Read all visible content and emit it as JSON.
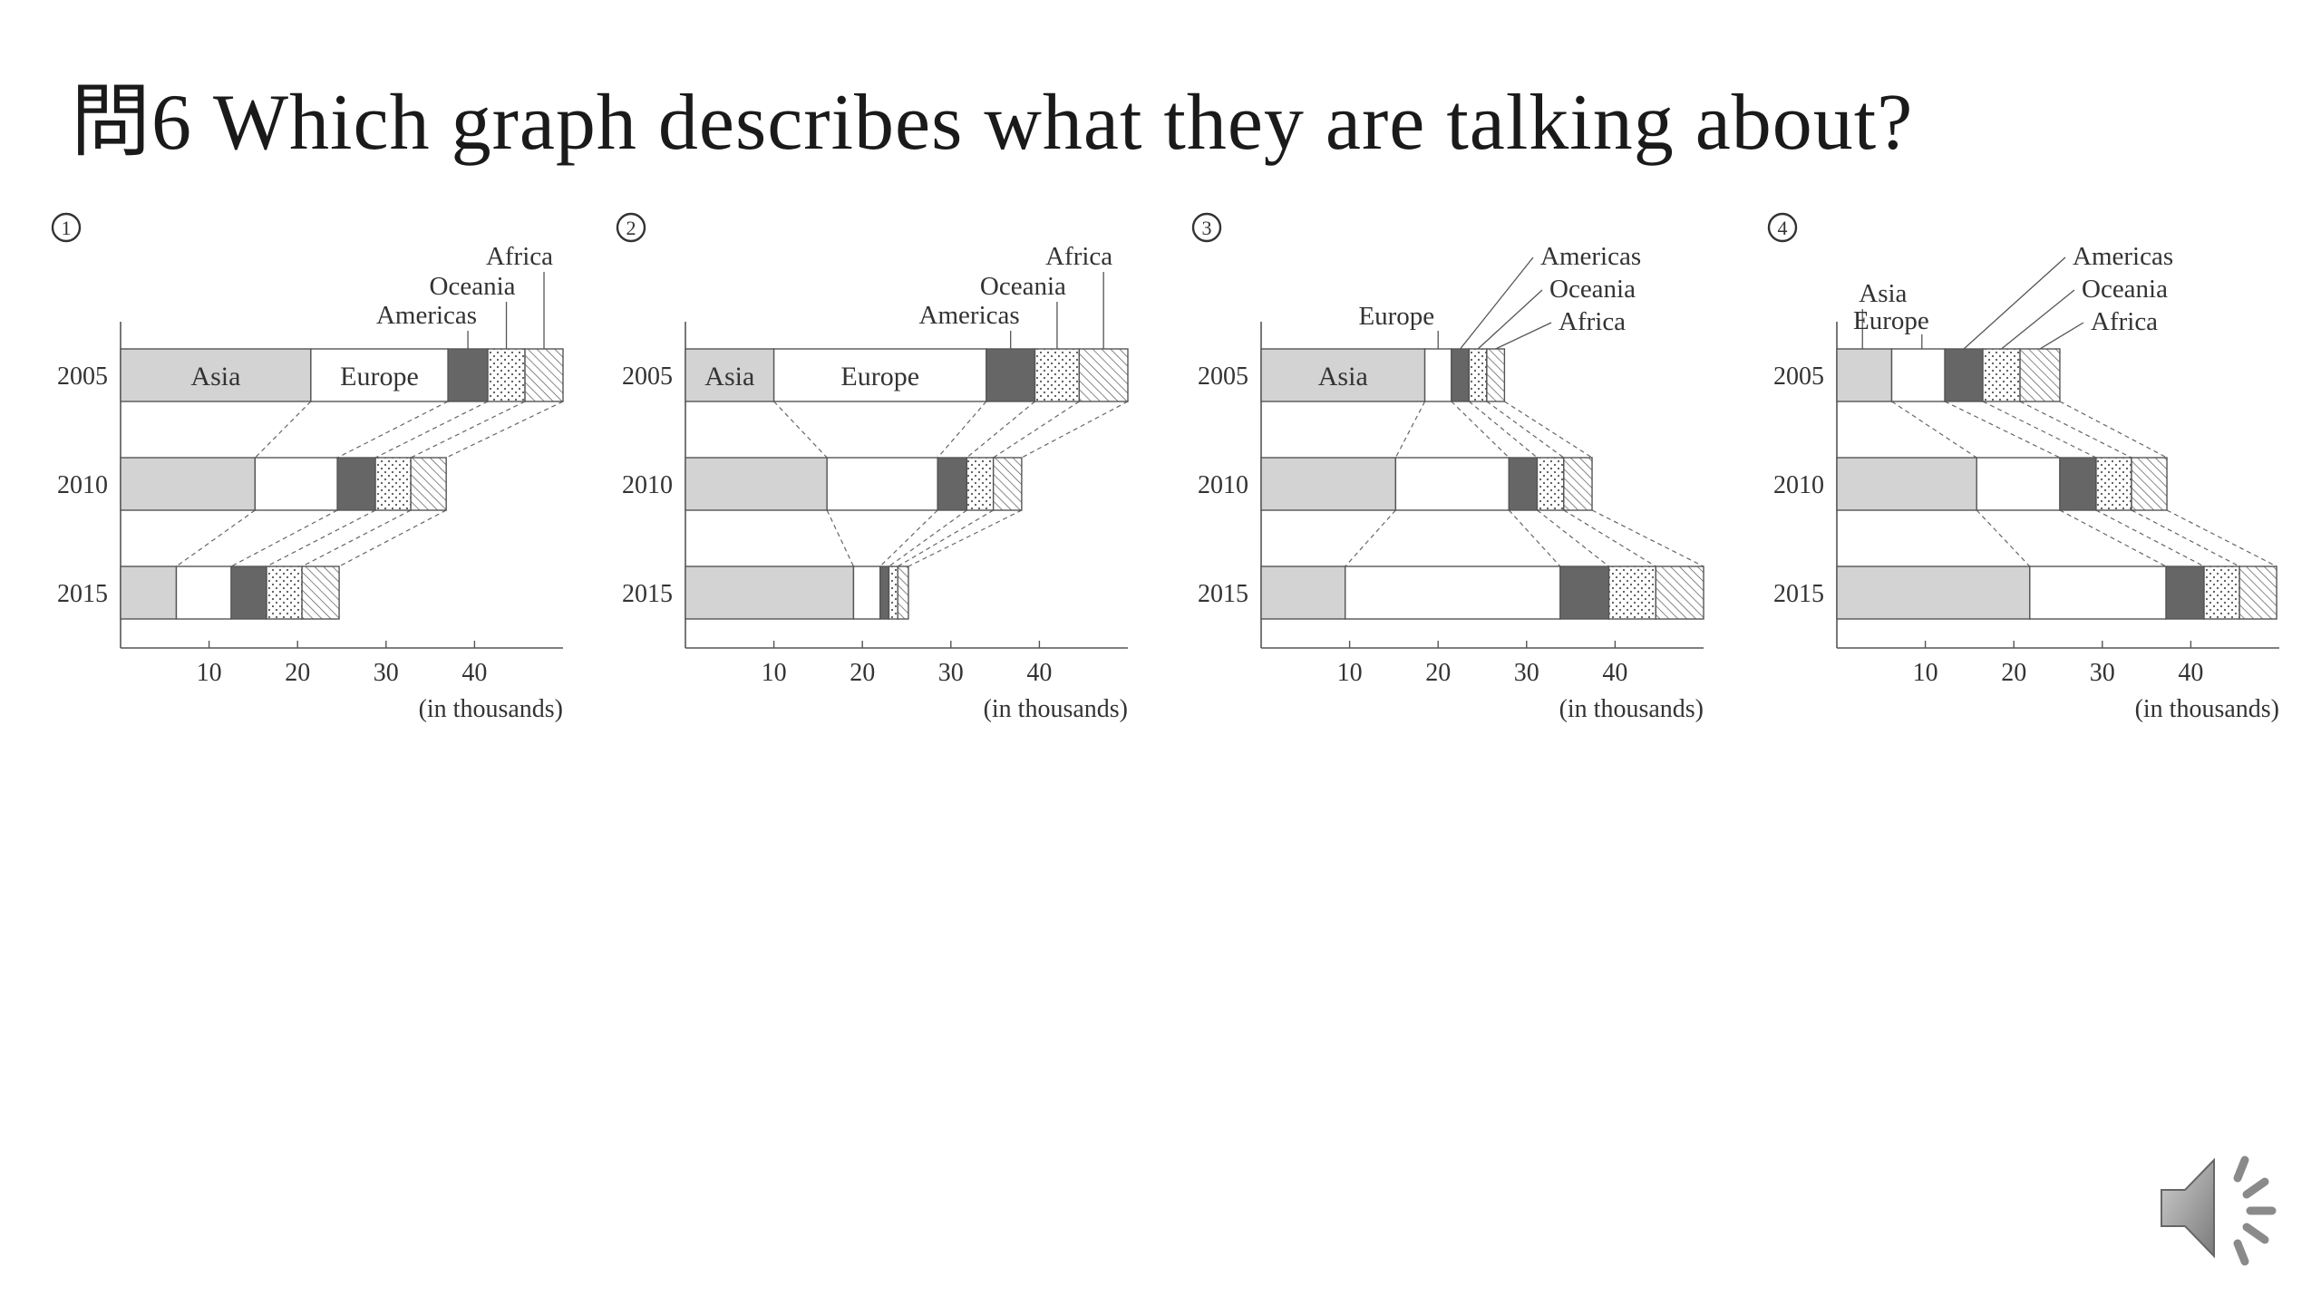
{
  "slide": {
    "title": "問6 Which graph describes what they are talking about?"
  },
  "colors": {
    "Asia": "#d3d3d3",
    "Europe": "#ffffff",
    "Americas": "#666666",
    "Oceania": "dotted",
    "Africa": "hatched",
    "stroke": "#555555"
  },
  "icons": {
    "speaker": "speaker-icon"
  },
  "chart_data": [
    {
      "type": "bar",
      "stacked": true,
      "orientation": "horizontal",
      "choice": "①",
      "categories": [
        "2005",
        "2010",
        "2015"
      ],
      "series": [
        {
          "name": "Asia",
          "values": [
            21.5,
            15.2,
            6.3
          ]
        },
        {
          "name": "Europe",
          "values": [
            15.5,
            9.3,
            6.2
          ]
        },
        {
          "name": "Americas",
          "values": [
            4.5,
            4.3,
            4.0
          ]
        },
        {
          "name": "Oceania",
          "values": [
            4.2,
            4.0,
            4.0
          ]
        },
        {
          "name": "Africa",
          "values": [
            4.3,
            4.0,
            4.2
          ]
        }
      ],
      "xticks": [
        "10",
        "20",
        "30",
        "40"
      ],
      "xlabel": "(in thousands)",
      "xlim": [
        0,
        50
      ],
      "inside_labels": [
        "Asia",
        "Europe"
      ],
      "callouts": [
        "Americas",
        "Oceania",
        "Africa"
      ]
    },
    {
      "type": "bar",
      "stacked": true,
      "orientation": "horizontal",
      "choice": "②",
      "categories": [
        "2005",
        "2010",
        "2015"
      ],
      "series": [
        {
          "name": "Asia",
          "values": [
            10.0,
            16.0,
            19.0
          ]
        },
        {
          "name": "Europe",
          "values": [
            24.0,
            12.5,
            3.0
          ]
        },
        {
          "name": "Americas",
          "values": [
            5.5,
            3.3,
            1.0
          ]
        },
        {
          "name": "Oceania",
          "values": [
            5.0,
            3.0,
            1.0
          ]
        },
        {
          "name": "Africa",
          "values": [
            5.5,
            3.2,
            1.2
          ]
        }
      ],
      "xticks": [
        "10",
        "20",
        "30",
        "40"
      ],
      "xlabel": "(in thousands)",
      "xlim": [
        0,
        50
      ],
      "inside_labels": [
        "Asia",
        "Europe"
      ],
      "callouts": [
        "Americas",
        "Oceania",
        "Africa"
      ]
    },
    {
      "type": "bar",
      "stacked": true,
      "orientation": "horizontal",
      "choice": "③",
      "categories": [
        "2005",
        "2010",
        "2015"
      ],
      "series": [
        {
          "name": "Asia",
          "values": [
            18.5,
            15.2,
            9.5
          ]
        },
        {
          "name": "Europe",
          "values": [
            3.0,
            12.8,
            24.3
          ]
        },
        {
          "name": "Americas",
          "values": [
            2.0,
            3.2,
            5.5
          ]
        },
        {
          "name": "Oceania",
          "values": [
            2.0,
            3.0,
            5.3
          ]
        },
        {
          "name": "Africa",
          "values": [
            2.0,
            3.2,
            5.4
          ]
        }
      ],
      "xticks": [
        "10",
        "20",
        "30",
        "40"
      ],
      "xlabel": "(in thousands)",
      "xlim": [
        0,
        50
      ],
      "inside_labels": [
        "Asia"
      ],
      "callouts": [
        "Europe",
        "Americas",
        "Oceania",
        "Africa"
      ]
    },
    {
      "type": "bar",
      "stacked": true,
      "orientation": "horizontal",
      "choice": "④",
      "categories": [
        "2005",
        "2010",
        "2015"
      ],
      "series": [
        {
          "name": "Asia",
          "values": [
            6.2,
            15.8,
            21.8
          ]
        },
        {
          "name": "Europe",
          "values": [
            6.0,
            9.4,
            15.4
          ]
        },
        {
          "name": "Americas",
          "values": [
            4.3,
            4.1,
            4.3
          ]
        },
        {
          "name": "Oceania",
          "values": [
            4.2,
            4.0,
            4.0
          ]
        },
        {
          "name": "Africa",
          "values": [
            4.5,
            4.0,
            4.2
          ]
        }
      ],
      "xticks": [
        "10",
        "20",
        "30",
        "40"
      ],
      "xlabel": "(in thousands)",
      "xlim": [
        0,
        50
      ],
      "inside_labels": [],
      "callouts": [
        "Asia",
        "Europe",
        "Americas",
        "Oceania",
        "Africa"
      ]
    }
  ]
}
